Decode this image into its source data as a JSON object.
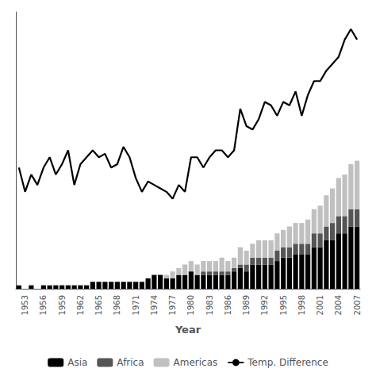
{
  "chart_data": {
    "type": "bar",
    "xlabel": "Year",
    "categories": [
      null,
      "1953",
      null,
      null,
      "1956",
      null,
      null,
      "1959",
      null,
      null,
      "1962",
      null,
      null,
      "1965",
      null,
      null,
      "1968",
      null,
      null,
      "1971",
      null,
      null,
      "1974",
      null,
      null,
      "1977",
      null,
      null,
      "1980",
      null,
      null,
      "1983",
      null,
      null,
      "1986",
      null,
      null,
      "1989",
      null,
      null,
      "1992",
      null,
      null,
      "1995",
      null,
      null,
      "1998",
      null,
      null,
      "2001",
      null,
      null,
      "2004",
      null,
      null,
      "2007"
    ],
    "series": [
      {
        "name": "Asia",
        "color": "#000000",
        "values": [
          1,
          0,
          1,
          0,
          1,
          1,
          1,
          1,
          1,
          1,
          1,
          1,
          2,
          2,
          2,
          2,
          2,
          2,
          2,
          2,
          2,
          3,
          4,
          4,
          3,
          3,
          4,
          4,
          5,
          4,
          4,
          4,
          4,
          4,
          4,
          5,
          6,
          5,
          7,
          7,
          7,
          7,
          8,
          9,
          9,
          10,
          10,
          10,
          12,
          12,
          14,
          14,
          16,
          16,
          18,
          18
        ]
      },
      {
        "name": "Africa",
        "color": "#555555",
        "values": [
          0,
          0,
          0,
          0,
          0,
          0,
          0,
          0,
          0,
          0,
          0,
          0,
          0,
          0,
          0,
          0,
          0,
          0,
          0,
          0,
          0,
          0,
          0,
          0,
          0,
          0,
          0,
          0,
          0,
          0,
          1,
          1,
          1,
          1,
          1,
          1,
          1,
          2,
          2,
          2,
          2,
          2,
          3,
          3,
          3,
          3,
          3,
          3,
          4,
          4,
          4,
          5,
          5,
          5,
          5,
          5
        ]
      },
      {
        "name": "Americas",
        "color": "#c0c0c0",
        "values": [
          0,
          0,
          0,
          0,
          0,
          0,
          0,
          0,
          0,
          0,
          0,
          0,
          0,
          0,
          0,
          0,
          0,
          0,
          0,
          0,
          0,
          0,
          0,
          0,
          1,
          2,
          2,
          3,
          3,
          3,
          3,
          3,
          3,
          4,
          3,
          3,
          5,
          4,
          4,
          5,
          5,
          5,
          5,
          5,
          6,
          6,
          6,
          7,
          7,
          8,
          9,
          10,
          11,
          12,
          13,
          14
        ]
      },
      {
        "name": "Temp. Difference",
        "type": "line",
        "color": "#000000",
        "values": [
          35,
          28,
          33,
          30,
          35,
          38,
          33,
          36,
          40,
          30,
          36,
          38,
          40,
          38,
          39,
          35,
          36,
          41,
          38,
          32,
          28,
          31,
          30,
          29,
          28,
          26,
          30,
          28,
          38,
          38,
          35,
          38,
          40,
          40,
          38,
          40,
          52,
          47,
          46,
          49,
          54,
          53,
          50,
          54,
          53,
          57,
          50,
          56,
          60,
          60,
          63,
          65,
          67,
          72,
          75,
          72
        ]
      }
    ],
    "stacked": true,
    "ylim": [
      0,
      80
    ],
    "tick_labels": "x",
    "grid": false,
    "legend": "bottom"
  }
}
